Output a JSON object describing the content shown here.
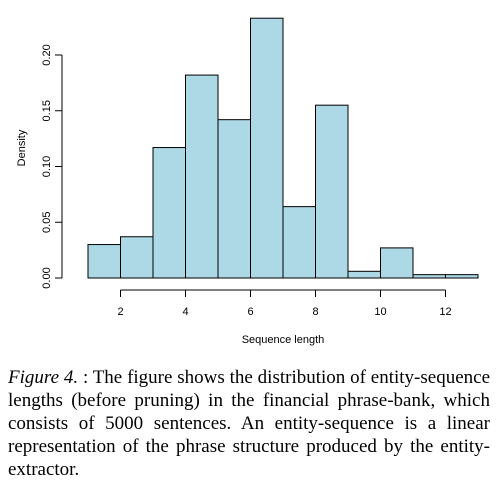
{
  "chart_data": {
    "type": "histogram",
    "xlabel": "Sequence length",
    "ylabel": "Density",
    "bins": [
      1,
      2,
      3,
      4,
      5,
      6,
      7,
      8,
      9,
      10,
      11,
      12,
      13
    ],
    "values": [
      0.03,
      0.037,
      0.117,
      0.182,
      0.142,
      0.233,
      0.064,
      0.155,
      0.006,
      0.027,
      0.003,
      0.003
    ],
    "color": "#add8e6",
    "xlim": [
      1,
      13
    ],
    "ylim": [
      0,
      0.24
    ],
    "xticks": [
      2,
      4,
      6,
      8,
      10,
      12
    ],
    "yticks": [
      {
        "value": 0,
        "label": "0.00"
      },
      {
        "value": 0.05,
        "label": "0.05"
      },
      {
        "value": 0.1,
        "label": "0.10"
      },
      {
        "value": 0.15,
        "label": "0.15"
      },
      {
        "value": 0.2,
        "label": "0.20"
      }
    ]
  },
  "caption": {
    "label": "Figure 4.",
    "text": ": The figure shows the distribution of entity-sequence lengths (before pruning) in the financial phrase-bank, which consists of 5000 sentences. An entity-sequence is a linear representation of the phrase structure produced by the entity-extractor."
  }
}
